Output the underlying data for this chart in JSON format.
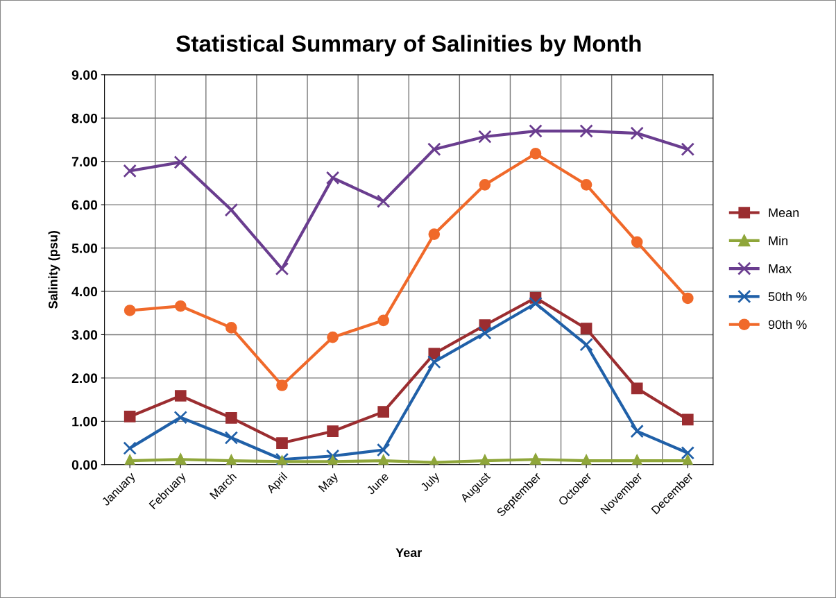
{
  "chart_data": {
    "type": "line",
    "title": "Statistical Summary of Salinities by Month",
    "xlabel": "Year",
    "ylabel": "Salinity (psu)",
    "categories": [
      "January",
      "February",
      "March",
      "April",
      "May",
      "June",
      "July",
      "August",
      "September",
      "October",
      "November",
      "December"
    ],
    "series": [
      {
        "name": "Mean",
        "color": "#9b2d30",
        "marker": "square",
        "values": [
          1.11,
          1.59,
          1.08,
          0.5,
          0.77,
          1.22,
          2.56,
          3.22,
          3.85,
          3.14,
          1.76,
          1.04
        ]
      },
      {
        "name": "Min",
        "color": "#8fa63a",
        "marker": "triangle",
        "values": [
          0.09,
          0.12,
          0.09,
          0.07,
          0.07,
          0.09,
          0.05,
          0.09,
          0.12,
          0.09,
          0.09,
          0.09
        ]
      },
      {
        "name": "Max",
        "color": "#6a3d8f",
        "marker": "cross",
        "values": [
          6.78,
          6.98,
          5.88,
          4.52,
          6.62,
          6.08,
          7.28,
          7.57,
          7.7,
          7.7,
          7.65,
          7.28
        ]
      },
      {
        "name": "50th %",
        "color": "#2060a8",
        "marker": "cross",
        "values": [
          0.38,
          1.09,
          0.62,
          0.12,
          0.2,
          0.34,
          2.37,
          3.04,
          3.72,
          2.77,
          0.77,
          0.27
        ]
      },
      {
        "name": "90th %",
        "color": "#f0692a",
        "marker": "circle",
        "values": [
          3.56,
          3.66,
          3.16,
          1.83,
          2.94,
          3.33,
          5.32,
          6.46,
          7.18,
          6.46,
          5.14,
          3.84
        ]
      }
    ],
    "ylim": [
      0,
      9
    ],
    "yticks": [
      {
        "value": 0,
        "label": "0.00"
      },
      {
        "value": 1,
        "label": "1.00"
      },
      {
        "value": 2,
        "label": "2.00"
      },
      {
        "value": 3,
        "label": "3.00"
      },
      {
        "value": 4,
        "label": "4.00"
      },
      {
        "value": 5,
        "label": "5.00"
      },
      {
        "value": 6,
        "label": "6.00"
      },
      {
        "value": 7,
        "label": "7.00"
      },
      {
        "value": 8,
        "label": "8.00"
      },
      {
        "value": 9,
        "label": "9.00"
      }
    ],
    "grid": true,
    "legend": "right"
  }
}
